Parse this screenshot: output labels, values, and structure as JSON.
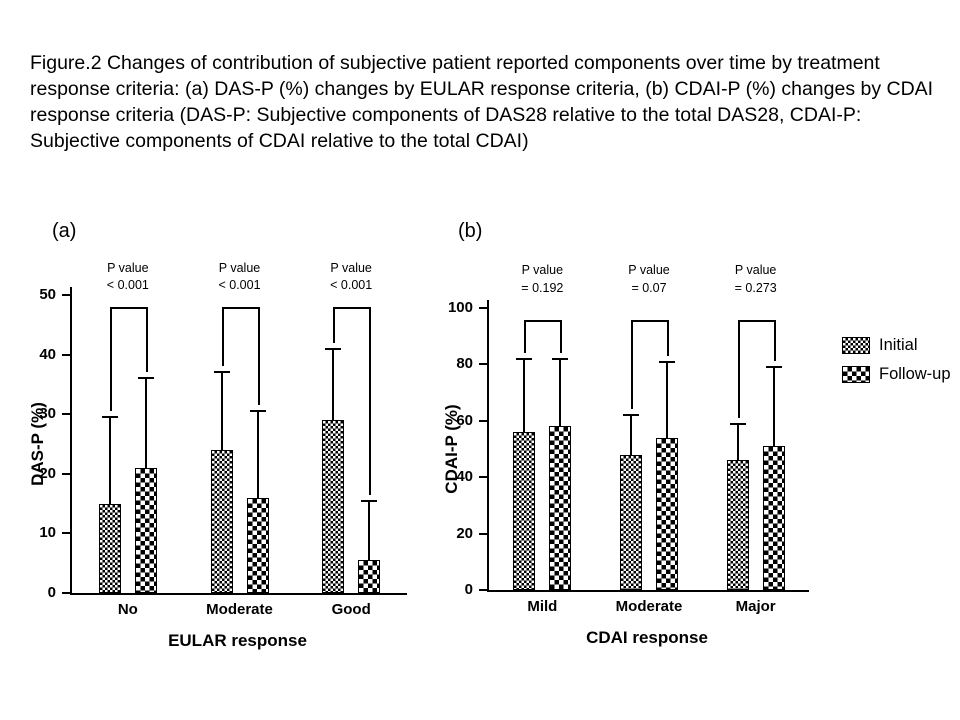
{
  "caption": "Figure.2 Changes of contribution of subjective patient reported components over time by treatment response criteria: (a) DAS-P (%) changes by EULAR response criteria, (b) CDAI-P (%) changes by CDAI response criteria (DAS-P: Subjective components of DAS28 relative to the total DAS28, CDAI-P: Subjective components of CDAI relative to the total CDAI)",
  "panels": {
    "a_label": "(a)",
    "b_label": "(b)"
  },
  "legend": {
    "position": "right of panel b",
    "items": [
      {
        "label": "Initial",
        "pattern": "fine-checker"
      },
      {
        "label": "Follow-up",
        "pattern": "coarse-checker"
      }
    ]
  },
  "colors": {
    "ink": "#000000",
    "background": "#ffffff"
  },
  "chart_data": [
    {
      "type": "bar",
      "panel": "a",
      "title": "",
      "xlabel": "EULAR response",
      "ylabel": "DAS-P (%)",
      "ylim": [
        0,
        50
      ],
      "ytick_step": 10,
      "grid": false,
      "categories": [
        "No",
        "Moderate",
        "Good"
      ],
      "series": [
        {
          "name": "Initial",
          "values": [
            15,
            24,
            29
          ],
          "upper_error": [
            29.5,
            37,
            41
          ]
        },
        {
          "name": "Follow-up",
          "values": [
            21,
            16,
            5.5
          ],
          "upper_error": [
            36,
            30.5,
            15.5
          ]
        }
      ],
      "p_label": "P value",
      "p_values": [
        "< 0.001",
        "< 0.001",
        "< 0.001"
      ]
    },
    {
      "type": "bar",
      "panel": "b",
      "title": "",
      "xlabel": "CDAI response",
      "ylabel": "CDAI-P (%)",
      "ylim": [
        0,
        100
      ],
      "ytick_step": 20,
      "grid": false,
      "categories": [
        "Mild",
        "Moderate",
        "Major"
      ],
      "series": [
        {
          "name": "Initial",
          "values": [
            56,
            48,
            46
          ],
          "upper_error": [
            82,
            62,
            59
          ]
        },
        {
          "name": "Follow-up",
          "values": [
            58,
            54,
            51
          ],
          "upper_error": [
            82,
            81,
            79
          ]
        }
      ],
      "p_label": "P value",
      "p_values": [
        "= 0.192",
        "= 0.07",
        "= 0.273"
      ]
    }
  ]
}
